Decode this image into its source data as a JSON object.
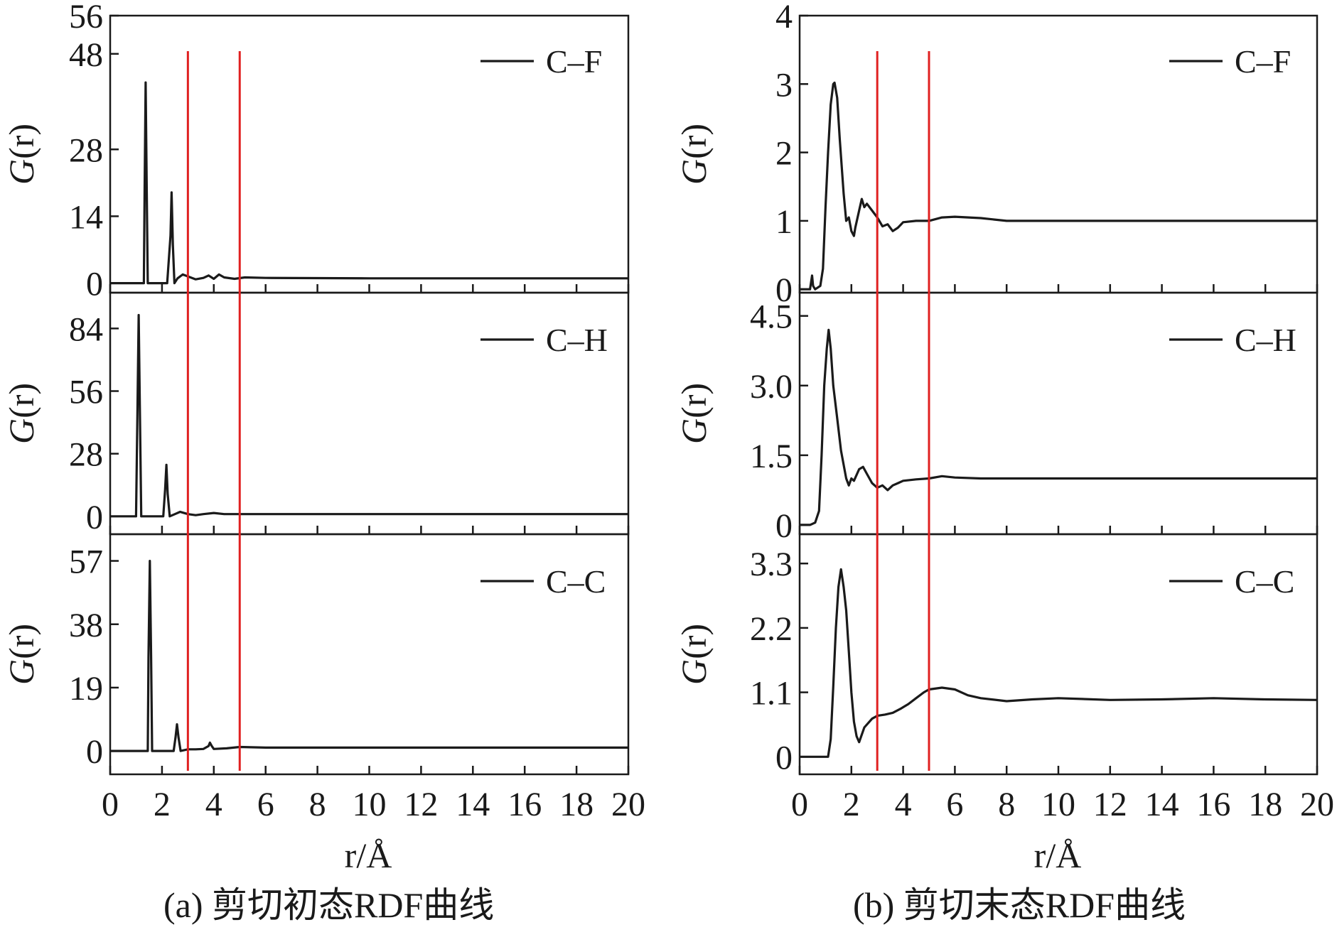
{
  "figure": {
    "x_axis_label": "r/Å",
    "captions": [
      "(a) 剪切初态RDF曲线",
      "(b) 剪切末态RDF曲线"
    ],
    "line_color": "#1a1a1a",
    "marker_color": "#e02020"
  },
  "chart_data": [
    {
      "type": "line",
      "panel": "(a)",
      "row": 0,
      "ylabel": "G(r)",
      "xlim": [
        0,
        20
      ],
      "xticks": [
        0,
        2,
        4,
        6,
        8,
        10,
        12,
        14,
        16,
        18,
        20
      ],
      "ylim": [
        -2,
        56
      ],
      "ytick_values": [
        0,
        14,
        28,
        48,
        56
      ],
      "ytick_labels": [
        "0",
        "14",
        "28",
        "48",
        "56"
      ],
      "vertical_lines_x": [
        3,
        5
      ],
      "series": [
        {
          "name": "C–F",
          "x": [
            0,
            1.3,
            1.33,
            1.37,
            1.41,
            1.45,
            1.5,
            2.2,
            2.33,
            2.37,
            2.42,
            2.48,
            2.6,
            2.8,
            3.0,
            3.3,
            3.6,
            3.8,
            4.0,
            4.2,
            4.4,
            4.8,
            5.2,
            6.0,
            8,
            10,
            12,
            14,
            16,
            18,
            20
          ],
          "y": [
            0,
            0,
            20,
            42,
            20,
            0,
            0,
            0,
            10,
            19,
            8,
            0,
            1,
            1.8,
            1.4,
            0.8,
            1.1,
            1.6,
            0.9,
            1.8,
            1.2,
            0.9,
            1.2,
            1.1,
            1.05,
            1.0,
            1.0,
            1.0,
            1.0,
            1.0,
            1.0
          ]
        }
      ]
    },
    {
      "type": "line",
      "panel": "(a)",
      "row": 1,
      "ylabel": "G(r)",
      "xlim": [
        0,
        20
      ],
      "xticks": [
        0,
        2,
        4,
        6,
        8,
        10,
        12,
        14,
        16,
        18,
        20
      ],
      "ylim": [
        -8,
        100
      ],
      "ytick_values": [
        0,
        28,
        56,
        84
      ],
      "ytick_labels": [
        "0",
        "28",
        "56",
        "84"
      ],
      "vertical_lines_x": [
        3,
        5
      ],
      "series": [
        {
          "name": "C–H",
          "x": [
            0,
            1.0,
            1.05,
            1.1,
            1.15,
            1.2,
            1.25,
            2.05,
            2.12,
            2.17,
            2.22,
            2.3,
            2.5,
            2.7,
            3.0,
            3.3,
            3.6,
            4.0,
            4.4,
            5.0,
            6,
            8,
            10,
            12,
            14,
            16,
            18,
            20
          ],
          "y": [
            0,
            0,
            45,
            90,
            45,
            0,
            0,
            0,
            12,
            23,
            10,
            0,
            1,
            2,
            1,
            0.5,
            1,
            1.5,
            1,
            1,
            1,
            1,
            1,
            1,
            1,
            1,
            1,
            1
          ]
        }
      ]
    },
    {
      "type": "line",
      "panel": "(a)",
      "row": 2,
      "ylabel": "G(r)",
      "xlim": [
        0,
        20
      ],
      "xticks": [
        0,
        2,
        4,
        6,
        8,
        10,
        12,
        14,
        16,
        18,
        20
      ],
      "ylim": [
        -7,
        65
      ],
      "ytick_values": [
        0,
        19,
        38,
        57
      ],
      "ytick_labels": [
        "0",
        "19",
        "38",
        "57"
      ],
      "vertical_lines_x": [
        3,
        5
      ],
      "series": [
        {
          "name": "C–C",
          "x": [
            0,
            1.45,
            1.48,
            1.53,
            1.58,
            1.62,
            1.68,
            2.45,
            2.52,
            2.58,
            2.64,
            2.72,
            3.0,
            3.3,
            3.6,
            3.8,
            3.85,
            3.92,
            4.0,
            4.5,
            5.0,
            6.0,
            8,
            10,
            12,
            14,
            16,
            18,
            20
          ],
          "y": [
            0,
            0,
            28,
            57,
            28,
            0,
            0,
            0,
            4,
            8,
            4,
            0,
            0.5,
            0.5,
            0.6,
            1.5,
            2.5,
            1.5,
            0.6,
            0.8,
            1.2,
            1.0,
            1.0,
            1.0,
            1.0,
            1.0,
            1.0,
            1.0,
            1.0
          ]
        }
      ]
    },
    {
      "type": "line",
      "panel": "(b)",
      "row": 0,
      "ylabel": "G(r)",
      "xlim": [
        0,
        20
      ],
      "xticks": [
        0,
        2,
        4,
        6,
        8,
        10,
        12,
        14,
        16,
        18,
        20
      ],
      "ylim": [
        -0.05,
        4.0
      ],
      "ytick_values": [
        0,
        1,
        2,
        3,
        4
      ],
      "ytick_labels": [
        "0",
        "1",
        "2",
        "3",
        "4"
      ],
      "vertical_lines_x": [
        3,
        5
      ],
      "series": [
        {
          "name": "C–F",
          "x": [
            0,
            0.4,
            0.48,
            0.52,
            0.6,
            0.8,
            0.9,
            1.0,
            1.1,
            1.2,
            1.3,
            1.35,
            1.45,
            1.55,
            1.7,
            1.8,
            1.9,
            2.0,
            2.1,
            2.15,
            2.3,
            2.4,
            2.5,
            2.6,
            2.8,
            3.0,
            3.2,
            3.4,
            3.6,
            3.8,
            4.0,
            4.5,
            5.0,
            5.5,
            6.0,
            7.0,
            8.0,
            10,
            12,
            14,
            16,
            18,
            20
          ],
          "y": [
            0,
            0,
            0.2,
            0.05,
            0,
            0.05,
            0.3,
            1.2,
            2.0,
            2.7,
            3.0,
            3.02,
            2.8,
            2.2,
            1.4,
            1.0,
            1.05,
            0.85,
            0.78,
            0.9,
            1.15,
            1.32,
            1.2,
            1.25,
            1.15,
            1.05,
            0.92,
            0.95,
            0.85,
            0.9,
            0.98,
            1.0,
            1.0,
            1.05,
            1.06,
            1.04,
            1.0,
            1.0,
            1.0,
            1.0,
            1.0,
            1.0,
            1.0
          ]
        }
      ]
    },
    {
      "type": "line",
      "panel": "(b)",
      "row": 1,
      "ylabel": "G(r)",
      "xlim": [
        0,
        20
      ],
      "xticks": [
        0,
        2,
        4,
        6,
        8,
        10,
        12,
        14,
        16,
        18,
        20
      ],
      "ylim": [
        -0.2,
        5.0
      ],
      "ytick_values": [
        0,
        1.5,
        3.0,
        4.5
      ],
      "ytick_labels": [
        "0",
        "1.5",
        "3.0",
        "4.5"
      ],
      "vertical_lines_x": [
        3,
        5
      ],
      "series": [
        {
          "name": "C–H",
          "x": [
            0,
            0.4,
            0.6,
            0.75,
            0.85,
            0.95,
            1.05,
            1.12,
            1.2,
            1.3,
            1.45,
            1.6,
            1.8,
            1.9,
            2.0,
            2.1,
            2.3,
            2.45,
            2.6,
            2.8,
            3.0,
            3.2,
            3.4,
            3.6,
            3.8,
            4.0,
            4.5,
            5.0,
            5.5,
            6.0,
            7.0,
            8.0,
            10,
            12,
            14,
            16,
            18,
            20
          ],
          "y": [
            0,
            0,
            0.05,
            0.3,
            1.5,
            3.0,
            3.8,
            4.2,
            3.8,
            3.0,
            2.3,
            1.6,
            1.0,
            0.85,
            1.0,
            0.95,
            1.2,
            1.25,
            1.1,
            0.9,
            0.8,
            0.85,
            0.75,
            0.85,
            0.9,
            0.95,
            0.98,
            1.0,
            1.05,
            1.02,
            1.0,
            1.0,
            1.0,
            1.0,
            1.0,
            1.0,
            1.0,
            1.0
          ]
        }
      ]
    },
    {
      "type": "line",
      "panel": "(b)",
      "row": 2,
      "ylabel": "G(r)",
      "xlim": [
        0,
        20
      ],
      "xticks": [
        0,
        2,
        4,
        6,
        8,
        10,
        12,
        14,
        16,
        18,
        20
      ],
      "ylim": [
        -0.3,
        3.8
      ],
      "ytick_values": [
        0,
        1.1,
        2.2,
        3.3
      ],
      "ytick_labels": [
        "0",
        "1.1",
        "2.2",
        "3.3"
      ],
      "vertical_lines_x": [
        3,
        5
      ],
      "series": [
        {
          "name": "C–C",
          "x": [
            0,
            1.1,
            1.2,
            1.3,
            1.4,
            1.5,
            1.6,
            1.7,
            1.8,
            1.9,
            2.0,
            2.1,
            2.2,
            2.3,
            2.5,
            2.8,
            3.0,
            3.3,
            3.6,
            3.9,
            4.2,
            4.5,
            4.8,
            5.0,
            5.5,
            6.0,
            6.5,
            7.0,
            8.0,
            9.0,
            10,
            12,
            14,
            16,
            18,
            20
          ],
          "y": [
            0,
            0,
            0.3,
            1.2,
            2.2,
            2.9,
            3.2,
            2.9,
            2.5,
            1.8,
            1.1,
            0.6,
            0.35,
            0.25,
            0.5,
            0.65,
            0.7,
            0.72,
            0.75,
            0.82,
            0.9,
            1.0,
            1.1,
            1.15,
            1.18,
            1.15,
            1.05,
            1.0,
            0.95,
            0.98,
            1.0,
            0.97,
            0.98,
            1.0,
            0.98,
            0.97
          ]
        }
      ]
    }
  ]
}
